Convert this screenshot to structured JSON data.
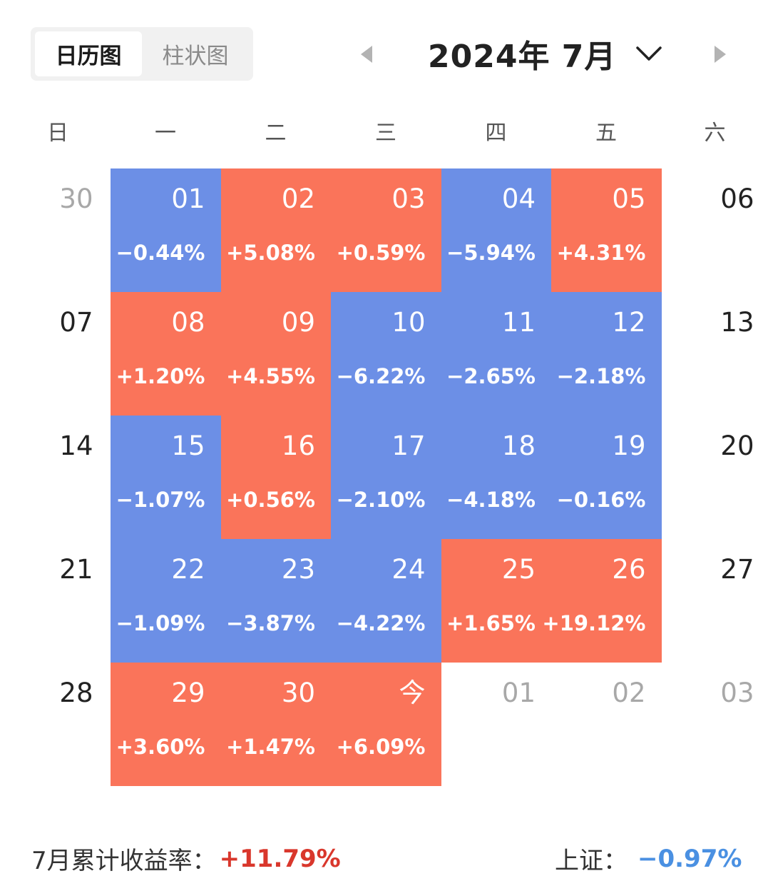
{
  "tabs": {
    "calendar": "日历图",
    "bar": "柱状图"
  },
  "header": {
    "month_title": "2024年 7月"
  },
  "weekdays": [
    "日",
    "一",
    "二",
    "三",
    "四",
    "五",
    "六"
  ],
  "calendar": [
    [
      {
        "day": "30",
        "pct": "",
        "kind": "outside"
      },
      {
        "day": "01",
        "pct": "−0.44%",
        "kind": "down"
      },
      {
        "day": "02",
        "pct": "+5.08%",
        "kind": "up"
      },
      {
        "day": "03",
        "pct": "+0.59%",
        "kind": "up"
      },
      {
        "day": "04",
        "pct": "−5.94%",
        "kind": "down"
      },
      {
        "day": "05",
        "pct": "+4.31%",
        "kind": "up"
      },
      {
        "day": "06",
        "pct": "",
        "kind": "plain"
      }
    ],
    [
      {
        "day": "07",
        "pct": "",
        "kind": "plain"
      },
      {
        "day": "08",
        "pct": "+1.20%",
        "kind": "up"
      },
      {
        "day": "09",
        "pct": "+4.55%",
        "kind": "up"
      },
      {
        "day": "10",
        "pct": "−6.22%",
        "kind": "down"
      },
      {
        "day": "11",
        "pct": "−2.65%",
        "kind": "down"
      },
      {
        "day": "12",
        "pct": "−2.18%",
        "kind": "down"
      },
      {
        "day": "13",
        "pct": "",
        "kind": "plain"
      }
    ],
    [
      {
        "day": "14",
        "pct": "",
        "kind": "plain"
      },
      {
        "day": "15",
        "pct": "−1.07%",
        "kind": "down"
      },
      {
        "day": "16",
        "pct": "+0.56%",
        "kind": "up"
      },
      {
        "day": "17",
        "pct": "−2.10%",
        "kind": "down"
      },
      {
        "day": "18",
        "pct": "−4.18%",
        "kind": "down"
      },
      {
        "day": "19",
        "pct": "−0.16%",
        "kind": "down"
      },
      {
        "day": "20",
        "pct": "",
        "kind": "plain"
      }
    ],
    [
      {
        "day": "21",
        "pct": "",
        "kind": "plain"
      },
      {
        "day": "22",
        "pct": "−1.09%",
        "kind": "down"
      },
      {
        "day": "23",
        "pct": "−3.87%",
        "kind": "down"
      },
      {
        "day": "24",
        "pct": "−4.22%",
        "kind": "down"
      },
      {
        "day": "25",
        "pct": "+1.65%",
        "kind": "up"
      },
      {
        "day": "26",
        "pct": "+19.12%",
        "kind": "up"
      },
      {
        "day": "27",
        "pct": "",
        "kind": "plain"
      }
    ],
    [
      {
        "day": "28",
        "pct": "",
        "kind": "plain"
      },
      {
        "day": "29",
        "pct": "+3.60%",
        "kind": "up"
      },
      {
        "day": "30",
        "pct": "+1.47%",
        "kind": "up"
      },
      {
        "day": "今",
        "pct": "+6.09%",
        "kind": "up"
      },
      {
        "day": "01",
        "pct": "",
        "kind": "outside"
      },
      {
        "day": "02",
        "pct": "",
        "kind": "outside"
      },
      {
        "day": "03",
        "pct": "",
        "kind": "outside"
      }
    ]
  ],
  "footer": {
    "cumulative_label": "7月累计收益率：",
    "cumulative_value": "+11.79%",
    "index_label": "上证：",
    "index_value": "−0.97%"
  },
  "colors": {
    "up": "#fa745a",
    "down": "#6c8fe6",
    "positive_text": "#d9372c",
    "negative_text": "#4a90e2"
  }
}
